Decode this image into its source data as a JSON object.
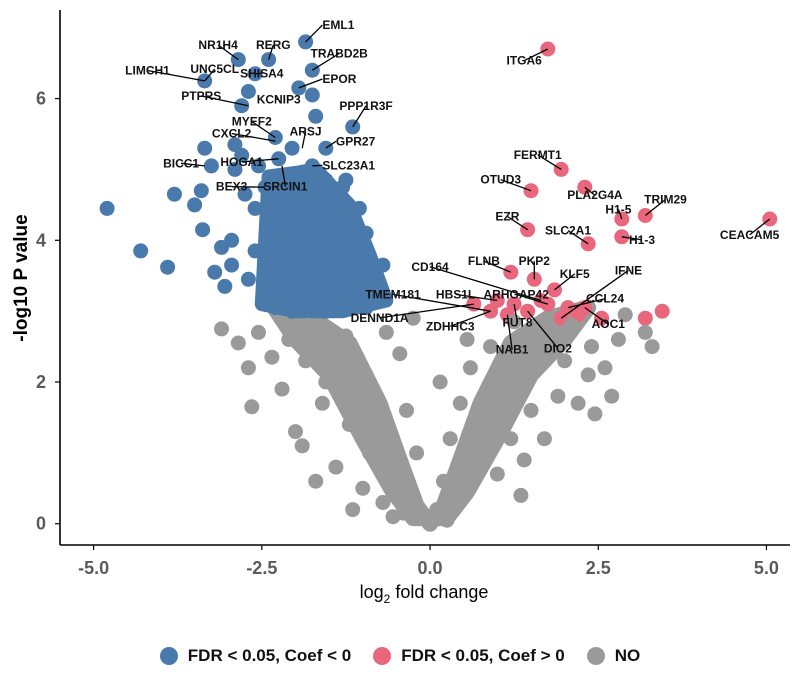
{
  "chart_data": {
    "type": "scatter",
    "title": "",
    "xlabel_main": "log",
    "xlabel_sub": "2",
    "xlabel_rest": " fold change",
    "ylabel": "-log10 P value",
    "xlim": [
      -5.5,
      5.35
    ],
    "ylim": [
      -0.3,
      7.25
    ],
    "x_ticks": [
      -5.0,
      -2.5,
      0.0,
      2.5,
      5.0
    ],
    "x_tick_labels": [
      "-5.0",
      "-2.5",
      "0.0",
      "2.5",
      "5.0"
    ],
    "y_ticks": [
      0,
      2,
      4,
      6
    ],
    "y_tick_labels": [
      "0",
      "2",
      "4",
      "6"
    ],
    "grid": false,
    "legend_position": "bottom",
    "colors": {
      "down": "#4a7aab",
      "up": "#e8677c",
      "ns": "#9a9a9a"
    },
    "series": [
      {
        "name": "FDR < 0.05, Coef < 0",
        "key": "down",
        "points": [
          [
            -4.8,
            4.45
          ],
          [
            -4.3,
            3.85
          ],
          [
            -3.9,
            3.62
          ],
          [
            -3.8,
            4.65
          ],
          [
            -3.5,
            4.5
          ],
          [
            -3.35,
            5.3
          ],
          [
            -3.4,
            4.7
          ],
          [
            -3.38,
            4.15
          ],
          [
            -3.1,
            3.9
          ],
          [
            -3.05,
            3.35
          ],
          [
            -2.9,
            5.0
          ],
          [
            -2.95,
            4.0
          ],
          [
            -2.6,
            4.45
          ],
          [
            -2.7,
            3.45
          ],
          [
            -2.4,
            3.2
          ],
          [
            -2.3,
            3.05
          ],
          [
            -2.05,
            3.0
          ],
          [
            -1.8,
            3.3
          ],
          [
            -1.55,
            3.0
          ],
          [
            -0.85,
            3.2
          ],
          [
            -0.7,
            3.65
          ],
          [
            -1.2,
            3.3
          ],
          [
            -1.35,
            4.2
          ],
          [
            -1.6,
            4.45
          ],
          [
            -1.45,
            4.6
          ],
          [
            -1.4,
            3.85
          ],
          [
            -2.1,
            4.0
          ],
          [
            -1.9,
            3.65
          ],
          [
            -2.45,
            3.75
          ],
          [
            -2.2,
            4.5
          ],
          [
            -1.3,
            4.75
          ],
          [
            -1.05,
            3.95
          ],
          [
            -1.55,
            4.85
          ],
          [
            -1.75,
            4.95
          ],
          [
            -2.75,
            4.65
          ],
          [
            -3.2,
            3.55
          ],
          [
            -2.95,
            3.65
          ],
          [
            -2.6,
            3.85
          ],
          [
            -2.35,
            3.5
          ],
          [
            -1.1,
            3.6
          ],
          [
            -0.95,
            3.05
          ],
          [
            -1.95,
            3.8
          ],
          [
            -1.65,
            3.7
          ],
          [
            -1.3,
            3.35
          ],
          [
            -2.15,
            4.25
          ],
          [
            -2.9,
            5.35
          ],
          [
            -3.25,
            5.05
          ],
          [
            -2.55,
            5.05
          ],
          [
            -1.25,
            4.85
          ],
          [
            -1.05,
            4.45
          ],
          [
            -0.95,
            4.1
          ],
          [
            -1.8,
            4.2
          ],
          [
            -1.85,
            6.8
          ],
          [
            -2.4,
            6.55
          ],
          [
            -2.85,
            6.55
          ],
          [
            -1.75,
            6.4
          ],
          [
            -2.6,
            6.35
          ],
          [
            -1.95,
            6.15
          ],
          [
            -3.35,
            6.25
          ],
          [
            -2.7,
            6.1
          ],
          [
            -1.75,
            6.05
          ],
          [
            -2.8,
            5.9
          ],
          [
            -1.7,
            5.75
          ],
          [
            -1.15,
            5.6
          ],
          [
            -2.3,
            5.45
          ],
          [
            -2.05,
            5.3
          ],
          [
            -1.55,
            5.3
          ],
          [
            -2.25,
            5.15
          ],
          [
            -1.75,
            5.05
          ],
          [
            -2.8,
            5.2
          ],
          [
            -2.45,
            4.75
          ],
          [
            -2.0,
            4.7
          ]
        ]
      },
      {
        "name": "FDR < 0.05, Coef > 0",
        "key": "up",
        "points": [
          [
            1.75,
            6.7
          ],
          [
            1.95,
            5.0
          ],
          [
            1.5,
            4.7
          ],
          [
            2.3,
            4.75
          ],
          [
            2.85,
            4.3
          ],
          [
            3.2,
            4.35
          ],
          [
            5.05,
            4.3
          ],
          [
            1.45,
            4.15
          ],
          [
            2.35,
            3.95
          ],
          [
            2.85,
            4.05
          ],
          [
            1.2,
            3.55
          ],
          [
            1.55,
            3.45
          ],
          [
            1.85,
            3.3
          ],
          [
            2.05,
            3.05
          ],
          [
            2.3,
            3.05
          ],
          [
            2.55,
            2.9
          ],
          [
            3.2,
            2.9
          ],
          [
            3.45,
            3.0
          ],
          [
            1.95,
            2.9
          ],
          [
            1.25,
            3.1
          ],
          [
            1.45,
            3.0
          ],
          [
            1.15,
            2.95
          ],
          [
            0.9,
            3.0
          ],
          [
            0.65,
            3.1
          ],
          [
            1.0,
            3.15
          ],
          [
            1.65,
            3.15
          ],
          [
            2.2,
            2.95
          ],
          [
            1.75,
            3.1
          ]
        ]
      },
      {
        "name": "NO",
        "key": "ns",
        "points": [
          [
            -3.1,
            2.75
          ],
          [
            -2.85,
            2.55
          ],
          [
            -2.7,
            2.2
          ],
          [
            -2.65,
            1.65
          ],
          [
            -2.55,
            2.7
          ],
          [
            -2.2,
            1.9
          ],
          [
            -2.0,
            1.3
          ],
          [
            -1.9,
            1.1
          ],
          [
            -1.7,
            0.6
          ],
          [
            -1.6,
            1.7
          ],
          [
            -1.4,
            0.8
          ],
          [
            -1.3,
            2.1
          ],
          [
            -1.2,
            1.4
          ],
          [
            -1.0,
            0.5
          ],
          [
            -0.9,
            1.0
          ],
          [
            -0.8,
            1.8
          ],
          [
            -0.7,
            0.3
          ],
          [
            -0.6,
            1.3
          ],
          [
            -0.5,
            0.7
          ],
          [
            -0.45,
            2.4
          ],
          [
            -0.4,
            0.15
          ],
          [
            -0.3,
            0.4
          ],
          [
            -0.2,
            1.0
          ],
          [
            -0.1,
            0.1
          ],
          [
            0.0,
            0.05
          ],
          [
            0.1,
            0.2
          ],
          [
            0.2,
            0.6
          ],
          [
            0.3,
            1.2
          ],
          [
            0.35,
            0.3
          ],
          [
            0.45,
            1.7
          ],
          [
            0.5,
            0.5
          ],
          [
            0.6,
            2.2
          ],
          [
            0.7,
            0.9
          ],
          [
            0.8,
            1.5
          ],
          [
            0.9,
            2.5
          ],
          [
            1.0,
            0.7
          ],
          [
            1.1,
            1.9
          ],
          [
            1.2,
            1.2
          ],
          [
            1.3,
            2.4
          ],
          [
            1.4,
            0.9
          ],
          [
            1.5,
            1.6
          ],
          [
            1.6,
            2.2
          ],
          [
            1.7,
            1.2
          ],
          [
            1.8,
            2.6
          ],
          [
            1.9,
            1.8
          ],
          [
            2.0,
            2.3
          ],
          [
            2.1,
            2.8
          ],
          [
            2.2,
            1.7
          ],
          [
            2.4,
            2.5
          ],
          [
            2.6,
            2.2
          ],
          [
            2.7,
            1.8
          ],
          [
            2.8,
            2.6
          ],
          [
            3.2,
            2.7
          ],
          [
            3.3,
            2.5
          ],
          [
            2.35,
            2.1
          ],
          [
            2.45,
            1.55
          ],
          [
            -2.35,
            2.35
          ],
          [
            -2.1,
            2.6
          ],
          [
            -1.85,
            2.3
          ],
          [
            -1.55,
            2.0
          ],
          [
            -1.25,
            2.65
          ],
          [
            -0.95,
            2.1
          ],
          [
            -0.65,
            2.7
          ],
          [
            -0.35,
            1.6
          ],
          [
            0.15,
            2.0
          ],
          [
            0.55,
            2.6
          ],
          [
            -0.25,
            2.9
          ],
          [
            -0.55,
            0.1
          ],
          [
            0.25,
            0.05
          ],
          [
            -1.15,
            0.2
          ],
          [
            1.35,
            0.4
          ],
          [
            -1.8,
            2.8
          ],
          [
            1.25,
            2.85
          ],
          [
            2.9,
            2.95
          ]
        ]
      }
    ],
    "annotations": [
      {
        "label": "EML1",
        "x": -1.85,
        "y": 6.8,
        "lx": -1.6,
        "ly": 6.98,
        "anchor": "start"
      },
      {
        "label": "NR1H4",
        "x": -2.85,
        "y": 6.55,
        "lx": -3.15,
        "ly": 6.7,
        "anchor": "middle"
      },
      {
        "label": "RERG",
        "x": -2.4,
        "y": 6.55,
        "lx": -2.33,
        "ly": 6.7,
        "anchor": "middle"
      },
      {
        "label": "TRABD2B",
        "x": -1.75,
        "y": 6.4,
        "lx": -1.35,
        "ly": 6.58,
        "anchor": "middle"
      },
      {
        "label": "LIMCH1",
        "x": -3.35,
        "y": 6.25,
        "lx": -4.2,
        "ly": 6.34,
        "anchor": "middle"
      },
      {
        "label": "UNC5CL",
        "x": -3.35,
        "y": 6.25,
        "lx": -3.2,
        "ly": 6.36,
        "anchor": "middle"
      },
      {
        "label": "SHISA4",
        "x": -2.6,
        "y": 6.35,
        "lx": -2.5,
        "ly": 6.3,
        "anchor": "middle"
      },
      {
        "label": "EPOR",
        "x": -1.95,
        "y": 6.15,
        "lx": -1.6,
        "ly": 6.22,
        "anchor": "start"
      },
      {
        "label": "PTPRS",
        "x": -2.7,
        "y": 5.9,
        "lx": -3.4,
        "ly": 5.98,
        "anchor": "middle"
      },
      {
        "label": "KCNIP3",
        "x": -2.3,
        "y": 6.0,
        "lx": -2.25,
        "ly": 5.93,
        "anchor": "middle"
      },
      {
        "label": "PPP1R3F",
        "x": -1.15,
        "y": 5.6,
        "lx": -0.95,
        "ly": 5.84,
        "anchor": "middle"
      },
      {
        "label": "MYEF2",
        "x": -2.3,
        "y": 5.45,
        "lx": -2.65,
        "ly": 5.62,
        "anchor": "middle"
      },
      {
        "label": "ARSJ",
        "x": -1.9,
        "y": 5.3,
        "lx": -1.85,
        "ly": 5.48,
        "anchor": "middle"
      },
      {
        "label": "CXCL2",
        "x": -2.3,
        "y": 5.4,
        "lx": -2.95,
        "ly": 5.45,
        "anchor": "middle"
      },
      {
        "label": "GPR27",
        "x": -1.55,
        "y": 5.3,
        "lx": -1.4,
        "ly": 5.34,
        "anchor": "start"
      },
      {
        "label": "BICC1",
        "x": -3.35,
        "y": 5.05,
        "lx": -3.7,
        "ly": 5.03,
        "anchor": "middle"
      },
      {
        "label": "HOGA1",
        "x": -2.25,
        "y": 5.15,
        "lx": -2.8,
        "ly": 5.05,
        "anchor": "middle"
      },
      {
        "label": "SLC23A1",
        "x": -1.75,
        "y": 5.05,
        "lx": -1.6,
        "ly": 5.0,
        "anchor": "start"
      },
      {
        "label": "BEX3",
        "x": -2.45,
        "y": 4.75,
        "lx": -2.95,
        "ly": 4.7,
        "anchor": "middle"
      },
      {
        "label": "SRCIN1",
        "x": -2.2,
        "y": 5.05,
        "lx": -2.15,
        "ly": 4.7,
        "anchor": "middle"
      },
      {
        "label": "ITGA6",
        "x": 1.75,
        "y": 6.7,
        "lx": 1.4,
        "ly": 6.48,
        "anchor": "middle"
      },
      {
        "label": "FERMT1",
        "x": 1.95,
        "y": 5.0,
        "lx": 1.6,
        "ly": 5.15,
        "anchor": "middle"
      },
      {
        "label": "OTUD3",
        "x": 1.5,
        "y": 4.7,
        "lx": 1.05,
        "ly": 4.8,
        "anchor": "middle"
      },
      {
        "label": "PLA2G4A",
        "x": 2.3,
        "y": 4.75,
        "lx": 2.45,
        "ly": 4.58,
        "anchor": "middle"
      },
      {
        "label": "TRIM29",
        "x": 3.2,
        "y": 4.35,
        "lx": 3.5,
        "ly": 4.52,
        "anchor": "middle"
      },
      {
        "label": "H1-5",
        "x": 2.85,
        "y": 4.3,
        "lx": 2.8,
        "ly": 4.38,
        "anchor": "middle"
      },
      {
        "label": "EZR",
        "x": 1.45,
        "y": 4.15,
        "lx": 1.15,
        "ly": 4.28,
        "anchor": "middle"
      },
      {
        "label": "SLC2A1",
        "x": 2.35,
        "y": 3.95,
        "lx": 2.05,
        "ly": 4.08,
        "anchor": "middle"
      },
      {
        "label": "H1-3",
        "x": 2.85,
        "y": 4.05,
        "lx": 3.15,
        "ly": 3.95,
        "anchor": "middle"
      },
      {
        "label": "CEACAM5",
        "x": 5.05,
        "y": 4.3,
        "lx": 4.75,
        "ly": 4.02,
        "anchor": "middle"
      },
      {
        "label": "CD164",
        "x": 1.65,
        "y": 3.15,
        "lx": 0.0,
        "ly": 3.57,
        "anchor": "middle"
      },
      {
        "label": "FLNB",
        "x": 1.2,
        "y": 3.55,
        "lx": 0.8,
        "ly": 3.65,
        "anchor": "middle"
      },
      {
        "label": "PKP2",
        "x": 1.55,
        "y": 3.45,
        "lx": 1.55,
        "ly": 3.65,
        "anchor": "middle"
      },
      {
        "label": "KLF5",
        "x": 1.85,
        "y": 3.3,
        "lx": 2.15,
        "ly": 3.47,
        "anchor": "middle"
      },
      {
        "label": "IFNE",
        "x": 1.95,
        "y": 2.9,
        "lx": 2.95,
        "ly": 3.52,
        "anchor": "middle"
      },
      {
        "label": "TMEM181",
        "x": 0.9,
        "y": 3.0,
        "lx": -0.55,
        "ly": 3.18,
        "anchor": "middle"
      },
      {
        "label": "HBS1L",
        "x": 1.0,
        "y": 3.15,
        "lx": 0.38,
        "ly": 3.18,
        "anchor": "middle"
      },
      {
        "label": "ARHGAP42",
        "x": 1.75,
        "y": 3.1,
        "lx": 1.28,
        "ly": 3.18,
        "anchor": "middle"
      },
      {
        "label": "CCL24",
        "x": 2.05,
        "y": 3.05,
        "lx": 2.6,
        "ly": 3.12,
        "anchor": "middle"
      },
      {
        "label": "DENND1A",
        "x": 0.65,
        "y": 3.1,
        "lx": -0.75,
        "ly": 2.85,
        "anchor": "middle"
      },
      {
        "label": "ZDHHC3",
        "x": 0.9,
        "y": 3.0,
        "lx": 0.3,
        "ly": 2.73,
        "anchor": "middle"
      },
      {
        "label": "FUT8",
        "x": 1.25,
        "y": 3.1,
        "lx": 1.3,
        "ly": 2.78,
        "anchor": "middle"
      },
      {
        "label": "AOC1",
        "x": 2.3,
        "y": 3.05,
        "lx": 2.65,
        "ly": 2.76,
        "anchor": "middle"
      },
      {
        "label": "NAB1",
        "x": 1.15,
        "y": 2.95,
        "lx": 1.22,
        "ly": 2.4,
        "anchor": "middle"
      },
      {
        "label": "DIO2",
        "x": 1.45,
        "y": 3.0,
        "lx": 1.9,
        "ly": 2.42,
        "anchor": "middle"
      }
    ]
  },
  "legend": {
    "items": [
      {
        "label": "FDR < 0.05, Coef < 0",
        "color": "#4a7aab"
      },
      {
        "label": "FDR < 0.05, Coef > 0",
        "color": "#e8677c"
      },
      {
        "label": "NO",
        "color": "#9a9a9a"
      }
    ]
  }
}
